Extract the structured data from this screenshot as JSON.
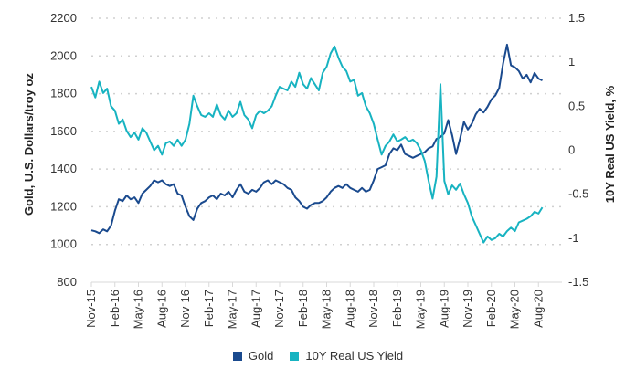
{
  "chart_data": {
    "type": "line",
    "title": "",
    "xlabel": "",
    "ylabel_left": "Gold, U.S. Dollars/troy oz",
    "ylabel_right": "10Y Real US Yield, %",
    "x_ticks": [
      "Nov-15",
      "Feb-16",
      "May-16",
      "Aug-16",
      "Nov-16",
      "Feb-17",
      "May-17",
      "Aug-17",
      "Nov-17",
      "Feb-18",
      "May-18",
      "Aug-18",
      "Nov-18",
      "Feb-19",
      "May-19",
      "Aug-19",
      "Nov-19",
      "Feb-20",
      "May-20",
      "Aug-20"
    ],
    "y_left_ticks": [
      "800",
      "1000",
      "1200",
      "1400",
      "1600",
      "1800",
      "2000",
      "2200"
    ],
    "y_left_lim": [
      800,
      2200
    ],
    "y_right_ticks": [
      "-1.5",
      "-1",
      "-0.5",
      "0",
      "0.5",
      "1",
      "1.5"
    ],
    "y_right_lim": [
      -1.5,
      1.5
    ],
    "grid": "horizontal dotted",
    "legend_position": "bottom-center",
    "x_range_months": [
      0,
      60
    ],
    "series": [
      {
        "name": "Gold",
        "axis": "left",
        "color": "#1a4a8e",
        "points": [
          [
            0,
            1075
          ],
          [
            0.5,
            1070
          ],
          [
            1,
            1060
          ],
          [
            1.5,
            1080
          ],
          [
            2,
            1070
          ],
          [
            2.5,
            1100
          ],
          [
            3,
            1180
          ],
          [
            3.5,
            1240
          ],
          [
            4,
            1230
          ],
          [
            4.5,
            1260
          ],
          [
            5,
            1240
          ],
          [
            5.5,
            1250
          ],
          [
            6,
            1220
          ],
          [
            6.5,
            1270
          ],
          [
            7,
            1290
          ],
          [
            7.5,
            1310
          ],
          [
            8,
            1340
          ],
          [
            8.5,
            1330
          ],
          [
            9,
            1340
          ],
          [
            9.5,
            1320
          ],
          [
            10,
            1310
          ],
          [
            10.5,
            1320
          ],
          [
            11,
            1270
          ],
          [
            11.5,
            1260
          ],
          [
            12,
            1200
          ],
          [
            12.5,
            1150
          ],
          [
            13,
            1130
          ],
          [
            13.5,
            1190
          ],
          [
            14,
            1220
          ],
          [
            14.5,
            1230
          ],
          [
            15,
            1250
          ],
          [
            15.5,
            1260
          ],
          [
            16,
            1240
          ],
          [
            16.5,
            1270
          ],
          [
            17,
            1260
          ],
          [
            17.5,
            1280
          ],
          [
            18,
            1250
          ],
          [
            18.5,
            1290
          ],
          [
            19,
            1320
          ],
          [
            19.5,
            1280
          ],
          [
            20,
            1270
          ],
          [
            20.5,
            1290
          ],
          [
            21,
            1280
          ],
          [
            21.5,
            1300
          ],
          [
            22,
            1330
          ],
          [
            22.5,
            1340
          ],
          [
            23,
            1320
          ],
          [
            23.5,
            1340
          ],
          [
            24,
            1330
          ],
          [
            24.5,
            1320
          ],
          [
            25,
            1300
          ],
          [
            25.5,
            1290
          ],
          [
            26,
            1250
          ],
          [
            26.5,
            1230
          ],
          [
            27,
            1200
          ],
          [
            27.5,
            1190
          ],
          [
            28,
            1210
          ],
          [
            28.5,
            1220
          ],
          [
            29,
            1220
          ],
          [
            29.5,
            1230
          ],
          [
            30,
            1250
          ],
          [
            30.5,
            1280
          ],
          [
            31,
            1300
          ],
          [
            31.5,
            1310
          ],
          [
            32,
            1300
          ],
          [
            32.5,
            1320
          ],
          [
            33,
            1300
          ],
          [
            33.5,
            1290
          ],
          [
            34,
            1280
          ],
          [
            34.5,
            1300
          ],
          [
            35,
            1280
          ],
          [
            35.5,
            1290
          ],
          [
            36,
            1340
          ],
          [
            36.5,
            1400
          ],
          [
            37,
            1410
          ],
          [
            37.5,
            1420
          ],
          [
            38,
            1480
          ],
          [
            38.5,
            1510
          ],
          [
            39,
            1500
          ],
          [
            39.5,
            1530
          ],
          [
            40,
            1480
          ],
          [
            40.5,
            1470
          ],
          [
            41,
            1460
          ],
          [
            41.5,
            1470
          ],
          [
            42,
            1480
          ],
          [
            42.5,
            1490
          ],
          [
            43,
            1510
          ],
          [
            43.5,
            1520
          ],
          [
            44,
            1560
          ],
          [
            44.5,
            1570
          ],
          [
            45,
            1590
          ],
          [
            45.5,
            1660
          ],
          [
            46,
            1580
          ],
          [
            46.5,
            1480
          ],
          [
            47,
            1560
          ],
          [
            47.5,
            1650
          ],
          [
            48,
            1610
          ],
          [
            48.5,
            1640
          ],
          [
            49,
            1690
          ],
          [
            49.5,
            1720
          ],
          [
            50,
            1700
          ],
          [
            50.5,
            1730
          ],
          [
            51,
            1770
          ],
          [
            51.5,
            1790
          ],
          [
            52,
            1830
          ],
          [
            52.5,
            1960
          ],
          [
            53,
            2060
          ],
          [
            53.5,
            1950
          ],
          [
            54,
            1940
          ],
          [
            54.5,
            1920
          ],
          [
            55,
            1880
          ],
          [
            55.5,
            1900
          ],
          [
            56,
            1860
          ],
          [
            56.5,
            1910
          ],
          [
            57,
            1880
          ],
          [
            57.5,
            1870
          ]
        ]
      },
      {
        "name": "10Y Real US Yield",
        "axis": "right",
        "color": "#17b3c1",
        "points": [
          [
            0,
            0.72
          ],
          [
            0.5,
            0.6
          ],
          [
            1,
            0.78
          ],
          [
            1.5,
            0.65
          ],
          [
            2,
            0.7
          ],
          [
            2.5,
            0.5
          ],
          [
            3,
            0.45
          ],
          [
            3.5,
            0.3
          ],
          [
            4,
            0.35
          ],
          [
            4.5,
            0.22
          ],
          [
            5,
            0.15
          ],
          [
            5.5,
            0.2
          ],
          [
            6,
            0.12
          ],
          [
            6.5,
            0.25
          ],
          [
            7,
            0.2
          ],
          [
            7.5,
            0.1
          ],
          [
            8,
            0.0
          ],
          [
            8.5,
            0.05
          ],
          [
            9,
            -0.05
          ],
          [
            9.5,
            0.08
          ],
          [
            10,
            0.1
          ],
          [
            10.5,
            0.05
          ],
          [
            11,
            0.12
          ],
          [
            11.5,
            0.05
          ],
          [
            12,
            0.12
          ],
          [
            12.5,
            0.3
          ],
          [
            13,
            0.62
          ],
          [
            13.5,
            0.5
          ],
          [
            14,
            0.4
          ],
          [
            14.5,
            0.38
          ],
          [
            15,
            0.42
          ],
          [
            15.5,
            0.38
          ],
          [
            16,
            0.52
          ],
          [
            16.5,
            0.4
          ],
          [
            17,
            0.35
          ],
          [
            17.5,
            0.45
          ],
          [
            18,
            0.38
          ],
          [
            18.5,
            0.42
          ],
          [
            19,
            0.55
          ],
          [
            19.5,
            0.4
          ],
          [
            20,
            0.35
          ],
          [
            20.5,
            0.25
          ],
          [
            21,
            0.4
          ],
          [
            21.5,
            0.45
          ],
          [
            22,
            0.42
          ],
          [
            22.5,
            0.45
          ],
          [
            23,
            0.5
          ],
          [
            23.5,
            0.62
          ],
          [
            24,
            0.72
          ],
          [
            24.5,
            0.7
          ],
          [
            25,
            0.68
          ],
          [
            25.5,
            0.78
          ],
          [
            26,
            0.72
          ],
          [
            26.5,
            0.88
          ],
          [
            27,
            0.75
          ],
          [
            27.5,
            0.7
          ],
          [
            28,
            0.82
          ],
          [
            28.5,
            0.75
          ],
          [
            29,
            0.68
          ],
          [
            29.5,
            0.88
          ],
          [
            30,
            0.95
          ],
          [
            30.5,
            1.1
          ],
          [
            31,
            1.18
          ],
          [
            31.5,
            1.05
          ],
          [
            32,
            0.95
          ],
          [
            32.5,
            0.9
          ],
          [
            33,
            0.78
          ],
          [
            33.5,
            0.8
          ],
          [
            34,
            0.62
          ],
          [
            34.5,
            0.65
          ],
          [
            35,
            0.5
          ],
          [
            35.5,
            0.42
          ],
          [
            36,
            0.3
          ],
          [
            36.5,
            0.12
          ],
          [
            37,
            -0.05
          ],
          [
            37.5,
            0.05
          ],
          [
            38,
            0.1
          ],
          [
            38.5,
            0.18
          ],
          [
            39,
            0.1
          ],
          [
            39.5,
            0.12
          ],
          [
            40,
            0.15
          ],
          [
            40.5,
            0.1
          ],
          [
            41,
            0.12
          ],
          [
            41.5,
            0.08
          ],
          [
            42,
            0.0
          ],
          [
            42.5,
            -0.12
          ],
          [
            43,
            -0.35
          ],
          [
            43.5,
            -0.55
          ],
          [
            44,
            -0.3
          ],
          [
            44.5,
            0.75
          ],
          [
            45,
            -0.35
          ],
          [
            45.5,
            -0.5
          ],
          [
            46,
            -0.4
          ],
          [
            46.5,
            -0.45
          ],
          [
            47,
            -0.38
          ],
          [
            47.5,
            -0.5
          ],
          [
            48,
            -0.6
          ],
          [
            48.5,
            -0.75
          ],
          [
            49,
            -0.85
          ],
          [
            49.5,
            -0.95
          ],
          [
            50,
            -1.05
          ],
          [
            50.5,
            -0.98
          ],
          [
            51,
            -1.02
          ],
          [
            51.5,
            -1.0
          ],
          [
            52,
            -0.95
          ],
          [
            52.5,
            -0.98
          ],
          [
            53,
            -0.92
          ],
          [
            53.5,
            -0.88
          ],
          [
            54,
            -0.92
          ],
          [
            54.5,
            -0.82
          ],
          [
            55,
            -0.8
          ],
          [
            55.5,
            -0.78
          ],
          [
            56,
            -0.75
          ],
          [
            56.5,
            -0.7
          ],
          [
            57,
            -0.72
          ],
          [
            57.5,
            -0.65
          ]
        ]
      }
    ]
  }
}
